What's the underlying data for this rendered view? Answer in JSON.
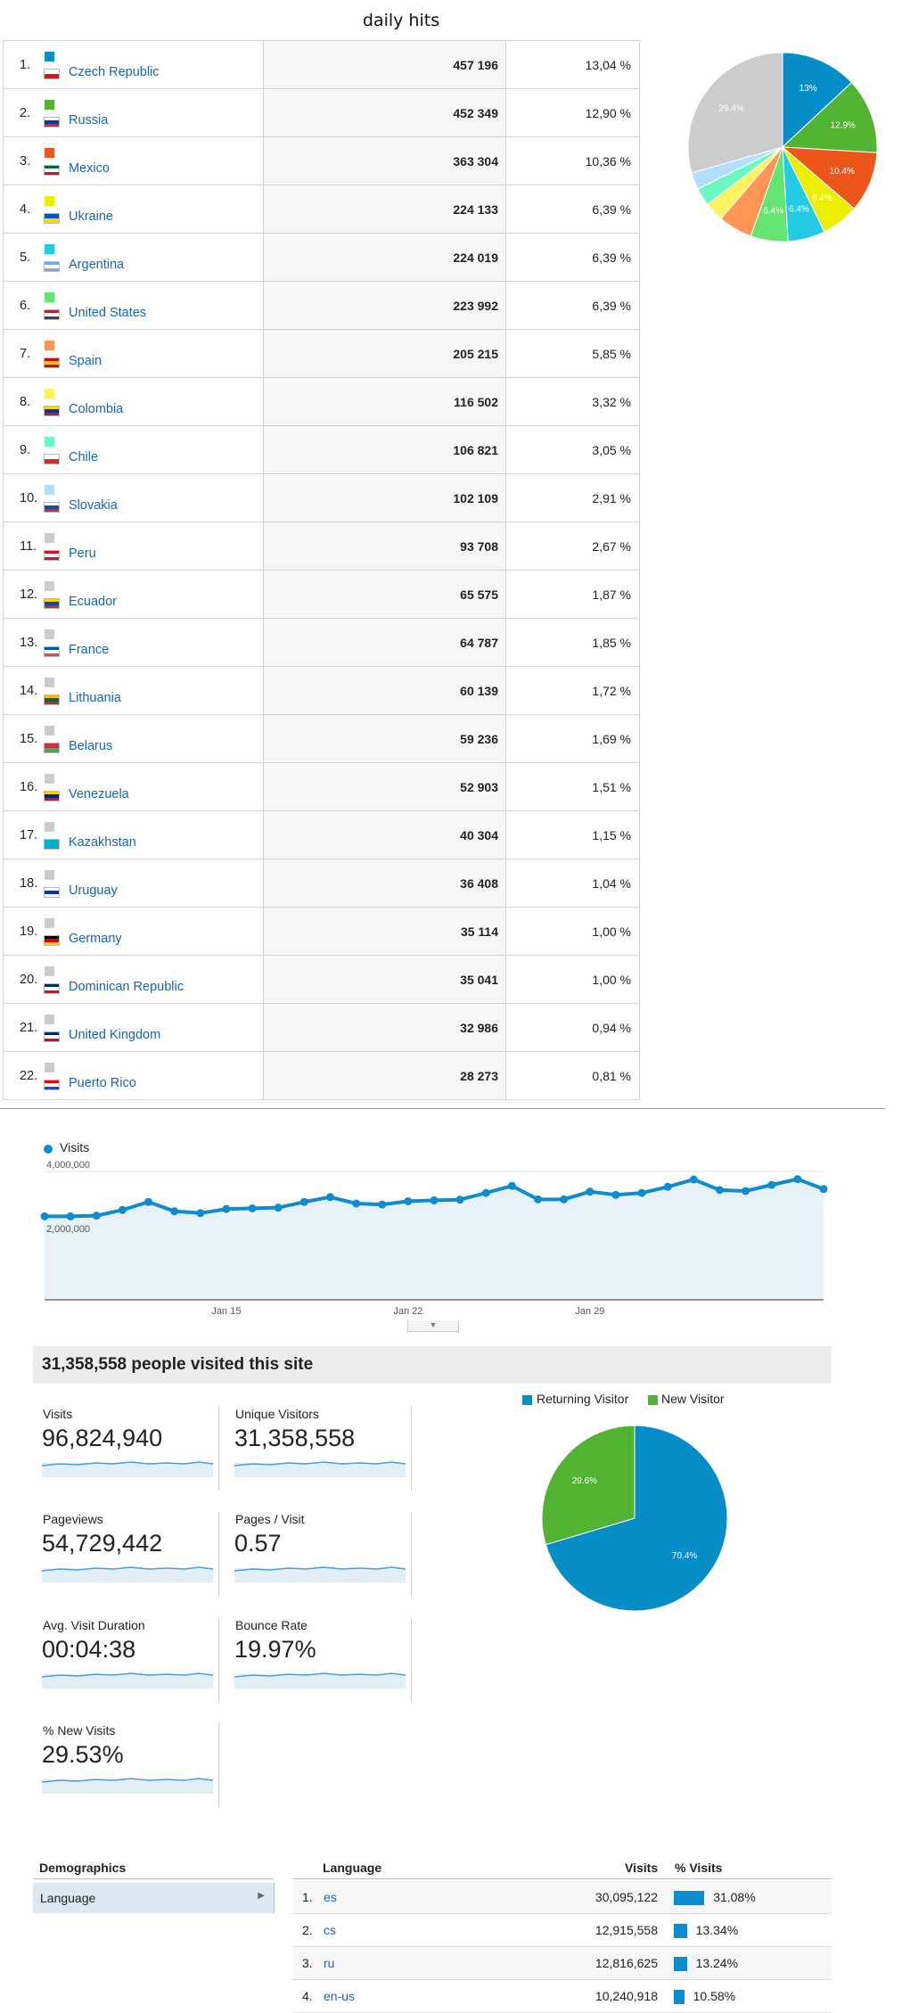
{
  "title": "daily hits",
  "countries": [
    {
      "rank": "1.",
      "name": "Czech Republic",
      "visits": "457 196",
      "pct": "13,04 %",
      "color": "#058dc7",
      "flag": [
        "#ffffff",
        "#d7141a"
      ]
    },
    {
      "rank": "2.",
      "name": "Russia",
      "visits": "452 349",
      "pct": "12,90 %",
      "color": "#50b432",
      "flag": [
        "#ffffff",
        "#0039a6",
        "#d52b1e"
      ]
    },
    {
      "rank": "3.",
      "name": "Mexico",
      "visits": "363 304",
      "pct": "10,36 %",
      "color": "#ed561b",
      "flag": [
        "#006847",
        "#ffffff",
        "#ce1126"
      ]
    },
    {
      "rank": "4.",
      "name": "Ukraine",
      "visits": "224 133",
      "pct": "6,39 %",
      "color": "#edef00",
      "flag": [
        "#0057b7",
        "#ffd700"
      ]
    },
    {
      "rank": "5.",
      "name": "Argentina",
      "visits": "224 019",
      "pct": "6,39 %",
      "color": "#24cbe5",
      "flag": [
        "#74acdf",
        "#ffffff",
        "#74acdf"
      ]
    },
    {
      "rank": "6.",
      "name": "United States",
      "visits": "223 992",
      "pct": "6,39 %",
      "color": "#64e572",
      "flag": [
        "#b22234",
        "#ffffff",
        "#3c3b6e"
      ]
    },
    {
      "rank": "7.",
      "name": "Spain",
      "visits": "205 215",
      "pct": "5,85 %",
      "color": "#ff9655",
      "flag": [
        "#c60b1e",
        "#ffc400",
        "#c60b1e"
      ]
    },
    {
      "rank": "8.",
      "name": "Colombia",
      "visits": "116 502",
      "pct": "3,32 %",
      "color": "#fff263",
      "flag": [
        "#fcd116",
        "#003893",
        "#ce1126"
      ]
    },
    {
      "rank": "9.",
      "name": "Chile",
      "visits": "106 821",
      "pct": "3,05 %",
      "color": "#6af9c4",
      "flag": [
        "#ffffff",
        "#d52b1e"
      ]
    },
    {
      "rank": "10.",
      "name": "Slovakia",
      "visits": "102 109",
      "pct": "2,91 %",
      "color": "#b2deff",
      "flag": [
        "#ffffff",
        "#0b4ea2",
        "#ee1c25"
      ]
    },
    {
      "rank": "11.",
      "name": "Peru",
      "visits": "93 708",
      "pct": "2,67 %",
      "color": "#cccccc",
      "flag": [
        "#d91023",
        "#ffffff",
        "#d91023"
      ]
    },
    {
      "rank": "12.",
      "name": "Ecuador",
      "visits": "65 575",
      "pct": "1,87 %",
      "color": "#cccccc",
      "flag": [
        "#ffd100",
        "#034ea2",
        "#ed1c24"
      ]
    },
    {
      "rank": "13.",
      "name": "France",
      "visits": "64 787",
      "pct": "1,85 %",
      "color": "#cccccc",
      "flag": [
        "#0055a4",
        "#ffffff",
        "#ef4135"
      ]
    },
    {
      "rank": "14.",
      "name": "Lithuania",
      "visits": "60 139",
      "pct": "1,72 %",
      "color": "#cccccc",
      "flag": [
        "#fdb913",
        "#006a44",
        "#c1272d"
      ]
    },
    {
      "rank": "15.",
      "name": "Belarus",
      "visits": "59 236",
      "pct": "1,69 %",
      "color": "#cccccc",
      "flag": [
        "#c8313e",
        "#4aa657"
      ]
    },
    {
      "rank": "16.",
      "name": "Venezuela",
      "visits": "52 903",
      "pct": "1,51 %",
      "color": "#cccccc",
      "flag": [
        "#ffcc00",
        "#00247d",
        "#cf142b"
      ]
    },
    {
      "rank": "17.",
      "name": "Kazakhstan",
      "visits": "40 304",
      "pct": "1,15 %",
      "color": "#cccccc",
      "flag": [
        "#00afca",
        "#00afca"
      ]
    },
    {
      "rank": "18.",
      "name": "Uruguay",
      "visits": "36 408",
      "pct": "1,04 %",
      "color": "#cccccc",
      "flag": [
        "#ffffff",
        "#0038a8",
        "#ffffff"
      ]
    },
    {
      "rank": "19.",
      "name": "Germany",
      "visits": "35 114",
      "pct": "1,00 %",
      "color": "#cccccc",
      "flag": [
        "#000000",
        "#dd0000",
        "#ffce00"
      ]
    },
    {
      "rank": "20.",
      "name": "Dominican Republic",
      "visits": "35 041",
      "pct": "1,00 %",
      "color": "#cccccc",
      "flag": [
        "#002d62",
        "#ffffff",
        "#ce1126"
      ]
    },
    {
      "rank": "21.",
      "name": "United Kingdom",
      "visits": "32 986",
      "pct": "0,94 %",
      "color": "#cccccc",
      "flag": [
        "#012169",
        "#ffffff",
        "#c8102e"
      ]
    },
    {
      "rank": "22.",
      "name": "Puerto Rico",
      "visits": "28 273",
      "pct": "0,81 %",
      "color": "#cccccc",
      "flag": [
        "#ed0000",
        "#ffffff",
        "#0050f0"
      ]
    }
  ],
  "country_pie": {
    "slices": [
      {
        "value": 13.04,
        "color": "#058dc7",
        "label": "13%"
      },
      {
        "value": 12.9,
        "color": "#50b432",
        "label": "12.9%"
      },
      {
        "value": 10.36,
        "color": "#ed561b",
        "label": "10.4%"
      },
      {
        "value": 6.39,
        "color": "#edef00",
        "label": "6.4%"
      },
      {
        "value": 6.39,
        "color": "#24cbe5",
        "label": "6.4%"
      },
      {
        "value": 6.39,
        "color": "#64e572",
        "label": "6.4%"
      },
      {
        "value": 5.85,
        "color": "#ff9655",
        "label": ""
      },
      {
        "value": 3.32,
        "color": "#fff263",
        "label": ""
      },
      {
        "value": 3.05,
        "color": "#6af9c4",
        "label": ""
      },
      {
        "value": 2.91,
        "color": "#b2deff",
        "label": ""
      },
      {
        "value": 29.4,
        "color": "#cccccc",
        "label": "29.4%"
      }
    ]
  },
  "visits_chart": {
    "legend": "Visits",
    "y_ticks": [
      "4,000,000",
      "2,000,000"
    ],
    "x_ticks": [
      "Jan 15",
      "Jan 22",
      "Jan 29"
    ]
  },
  "chart_data": {
    "type": "area",
    "series": [
      {
        "name": "Visits",
        "values": [
          2600000,
          2600000,
          2620000,
          2800000,
          3050000,
          2760000,
          2700000,
          2830000,
          2850000,
          2870000,
          3050000,
          3200000,
          3000000,
          2970000,
          3070000,
          3100000,
          3120000,
          3330000,
          3550000,
          3130000,
          3130000,
          3370000,
          3270000,
          3330000,
          3520000,
          3750000,
          3420000,
          3390000,
          3580000,
          3760000,
          3450000
        ]
      }
    ],
    "x_labels": [
      "Jan 15",
      "Jan 22",
      "Jan 29"
    ],
    "ylim": [
      0,
      4000000
    ],
    "grid": true
  },
  "summary": {
    "headline": "31,358,558 people visited this site",
    "metrics": [
      {
        "label": "Visits",
        "value": "96,824,940"
      },
      {
        "label": "Unique Visitors",
        "value": "31,358,558"
      },
      {
        "label": "Pageviews",
        "value": "54,729,442"
      },
      {
        "label": "Pages / Visit",
        "value": "0.57"
      },
      {
        "label": "Avg. Visit Duration",
        "value": "00:04:38"
      },
      {
        "label": "Bounce Rate",
        "value": "19.97%"
      },
      {
        "label": "% New Visits",
        "value": "29.53%"
      }
    ]
  },
  "visitor_pie": {
    "legend": [
      {
        "label": "Returning Visitor",
        "color": "#058dc7"
      },
      {
        "label": "New Visitor",
        "color": "#50b432"
      }
    ],
    "slices": [
      {
        "value": 70.4,
        "color": "#058dc7",
        "label": "70.4%"
      },
      {
        "value": 29.6,
        "color": "#50b432",
        "label": "29.6%"
      }
    ]
  },
  "demographics": {
    "title": "Demographics",
    "selected": "Language",
    "headers": {
      "language": "Language",
      "visits": "Visits",
      "pct": "% Visits"
    },
    "rows": [
      {
        "rank": "1.",
        "code": "es",
        "visits": "30,095,122",
        "pct": "31.08%",
        "share": 31.08
      },
      {
        "rank": "2.",
        "code": "cs",
        "visits": "12,915,558",
        "pct": "13.34%",
        "share": 13.34
      },
      {
        "rank": "3.",
        "code": "ru",
        "visits": "12,816,625",
        "pct": "13.24%",
        "share": 13.24
      },
      {
        "rank": "4.",
        "code": "en-us",
        "visits": "10,240,918",
        "pct": "10.58%",
        "share": 10.58
      }
    ]
  }
}
